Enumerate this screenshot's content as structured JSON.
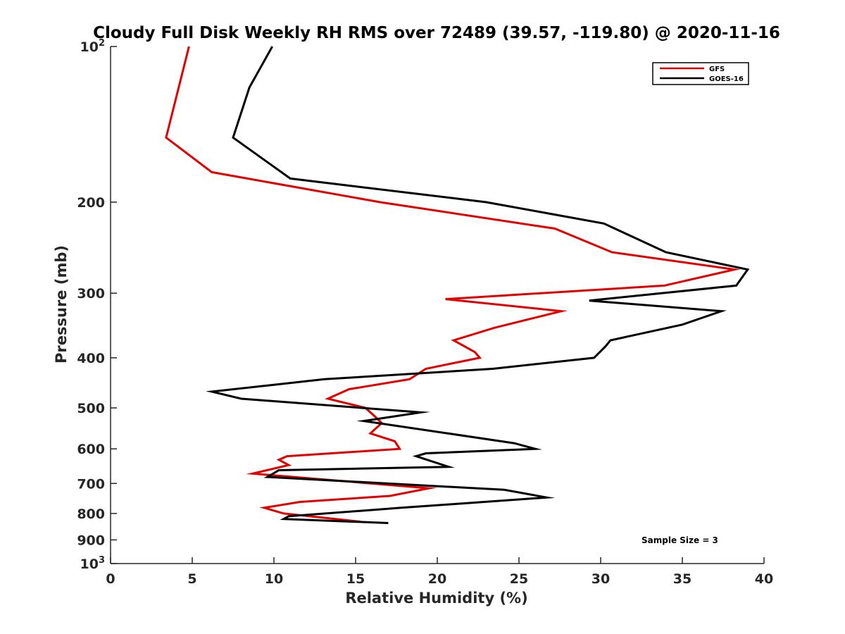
{
  "chart_data": {
    "type": "line",
    "title": "Cloudy Full Disk Weekly RH RMS over 72489 (39.57, -119.80) @ 2020-11-16",
    "xlabel": "Relative Humidity (%)",
    "ylabel": "Pressure (mb)",
    "xlim": [
      0,
      40
    ],
    "ylim": [
      100,
      1000
    ],
    "yscale": "log",
    "y_reversed": true,
    "grid": false,
    "legend_position": "top-right",
    "x_ticks": [
      0,
      5,
      10,
      15,
      20,
      25,
      30,
      35,
      40
    ],
    "x_tick_labels": [
      "0",
      "5",
      "10",
      "15",
      "20",
      "25",
      "30",
      "35",
      "40"
    ],
    "y_ticks": [
      100,
      200,
      300,
      400,
      500,
      600,
      700,
      800,
      900,
      1000
    ],
    "y_tick_labels": [
      {
        "base": "10",
        "sup": "2"
      },
      {
        "base": "200",
        "sup": ""
      },
      {
        "base": "300",
        "sup": ""
      },
      {
        "base": "400",
        "sup": ""
      },
      {
        "base": "500",
        "sup": ""
      },
      {
        "base": "600",
        "sup": ""
      },
      {
        "base": "700",
        "sup": ""
      },
      {
        "base": "800",
        "sup": ""
      },
      {
        "base": "900",
        "sup": ""
      },
      {
        "base": "10",
        "sup": "3"
      }
    ],
    "annotation": "Sample Size = 3",
    "series": [
      {
        "name": "GFS",
        "color": "#e00000",
        "x": [
          4.8,
          3.4,
          6.2,
          16.5,
          27.2,
          30.7,
          38.2,
          33.9,
          20.5,
          27.6,
          23.5,
          21.0,
          22.3,
          22.6,
          19.3,
          18.3,
          14.6,
          13.3,
          15.6,
          16.2,
          16.6,
          15.9,
          17.4,
          17.7,
          10.8,
          10.3,
          10.9,
          8.7,
          19.5,
          17.1,
          11.6,
          9.4,
          10.6,
          15.3
        ],
        "y": [
          100,
          150,
          175,
          200,
          225,
          250,
          270,
          290,
          308,
          325,
          350,
          370,
          390,
          400,
          420,
          440,
          460,
          480,
          500,
          520,
          535,
          560,
          580,
          600,
          620,
          630,
          645,
          670,
          715,
          740,
          760,
          780,
          800,
          830
        ]
      },
      {
        "name": "GOES-16",
        "color": "#000000",
        "x": [
          9.9,
          8.5,
          7.5,
          11.0,
          23.0,
          30.2,
          34.0,
          39.0,
          38.3,
          29.3,
          37.4,
          35.0,
          30.6,
          30.3,
          29.6,
          23.4,
          13.1,
          6.2,
          8.0,
          19.0,
          15.5,
          24.7,
          26.0,
          19.3,
          18.7,
          20.7,
          10.3,
          9.6,
          24.1,
          26.7,
          17.8,
          10.9,
          10.6,
          17.0
        ],
        "y": [
          100,
          120,
          150,
          180,
          200,
          220,
          250,
          270,
          290,
          310,
          325,
          345,
          370,
          380,
          400,
          420,
          440,
          465,
          480,
          510,
          530,
          585,
          600,
          612,
          620,
          650,
          660,
          680,
          720,
          745,
          780,
          810,
          820,
          835
        ]
      }
    ]
  }
}
